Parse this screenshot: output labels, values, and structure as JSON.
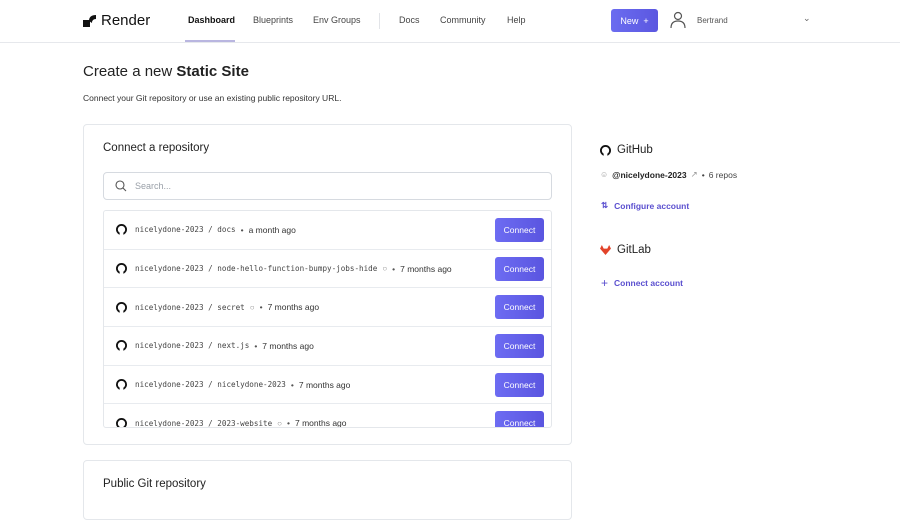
{
  "header": {
    "brand": "Render",
    "nav": [
      "Dashboard",
      "Blueprints",
      "Env Groups"
    ],
    "nav2": [
      "Docs",
      "Community",
      "Help"
    ],
    "new_label": "New",
    "user": "Bertrand"
  },
  "page": {
    "title_prefix": "Create a new",
    "title_bold": "Static Site",
    "subtitle": "Connect your Git repository or use an existing public repository URL."
  },
  "connect": {
    "title": "Connect a repository",
    "search_placeholder": "Search...",
    "button_label": "Connect",
    "repos": [
      {
        "owner": "nicelydone-2023",
        "name": "docs",
        "private": false,
        "updated": "a month ago"
      },
      {
        "owner": "nicelydone-2023",
        "name": "node-hello-function-bumpy-jobs-hide",
        "private": true,
        "updated": "7 months ago"
      },
      {
        "owner": "nicelydone-2023",
        "name": "secret",
        "private": true,
        "updated": "7 months ago"
      },
      {
        "owner": "nicelydone-2023",
        "name": "next.js",
        "private": false,
        "updated": "7 months ago"
      },
      {
        "owner": "nicelydone-2023",
        "name": "nicelydone-2023",
        "private": false,
        "updated": "7 months ago"
      },
      {
        "owner": "nicelydone-2023",
        "name": "2023-website",
        "private": true,
        "updated": "7 months ago"
      }
    ]
  },
  "public_repo": {
    "title": "Public Git repository"
  },
  "github": {
    "title": "GitHub",
    "account": "@nicelydone-2023",
    "repos": "6 repos",
    "configure": "Configure account"
  },
  "gitlab": {
    "title": "GitLab",
    "connect": "Connect account"
  },
  "colors": {
    "accent": "#5b57e0",
    "link": "#5a4fcf",
    "gitlab": "#e24329"
  }
}
